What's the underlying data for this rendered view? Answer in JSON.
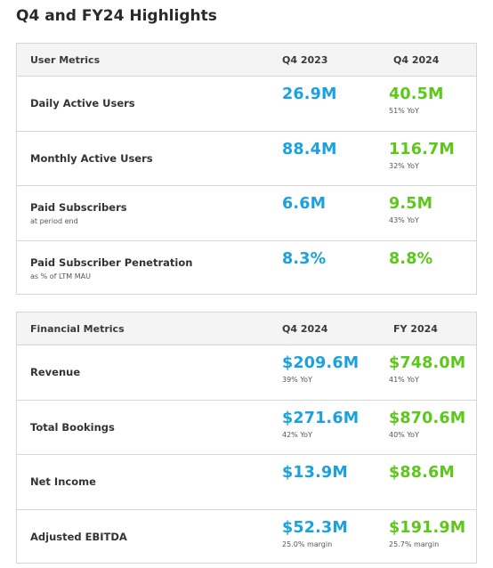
{
  "page": {
    "title": "Q4 and FY24 Highlights"
  },
  "colors": {
    "prior_value": "#1aa2e0",
    "current_value": "#5bc81a",
    "border": "#d6d6d6",
    "header_bg": "#f4f4f4"
  },
  "user_metrics": {
    "header": {
      "label": "User Metrics",
      "col1": "Q4 2023",
      "col2": "Q4 2024"
    },
    "rows": [
      {
        "label": "Daily Active Users",
        "sublabel": "",
        "v1": "26.9M",
        "v1_note": "",
        "v2": "40.5M",
        "v2_note": "51% YoY"
      },
      {
        "label": "Monthly Active Users",
        "sublabel": "",
        "v1": "88.4M",
        "v1_note": "",
        "v2": "116.7M",
        "v2_note": "32% YoY"
      },
      {
        "label": "Paid Subscribers",
        "sublabel": "at period end",
        "v1": "6.6M",
        "v1_note": "",
        "v2": "9.5M",
        "v2_note": "43% YoY"
      },
      {
        "label": "Paid Subscriber Penetration",
        "sublabel": "as % of LTM MAU",
        "v1": "8.3%",
        "v1_note": "",
        "v2": "8.8%",
        "v2_note": ""
      }
    ]
  },
  "financial_metrics": {
    "header": {
      "label": "Financial Metrics",
      "col1": "Q4 2024",
      "col2": "FY 2024"
    },
    "rows": [
      {
        "label": "Revenue",
        "v1": "$209.6M",
        "v1_note": "39% YoY",
        "v2": "$748.0M",
        "v2_note": "41% YoY"
      },
      {
        "label": "Total Bookings",
        "v1": "$271.6M",
        "v1_note": "42% YoY",
        "v2": "$870.6M",
        "v2_note": "40% YoY"
      },
      {
        "label": "Net Income",
        "v1": "$13.9M",
        "v1_note": "",
        "v2": "$88.6M",
        "v2_note": ""
      },
      {
        "label": "Adjusted EBITDA",
        "v1": "$52.3M",
        "v1_note": "25.0% margin",
        "v2": "$191.9M",
        "v2_note": "25.7% margin"
      }
    ]
  }
}
